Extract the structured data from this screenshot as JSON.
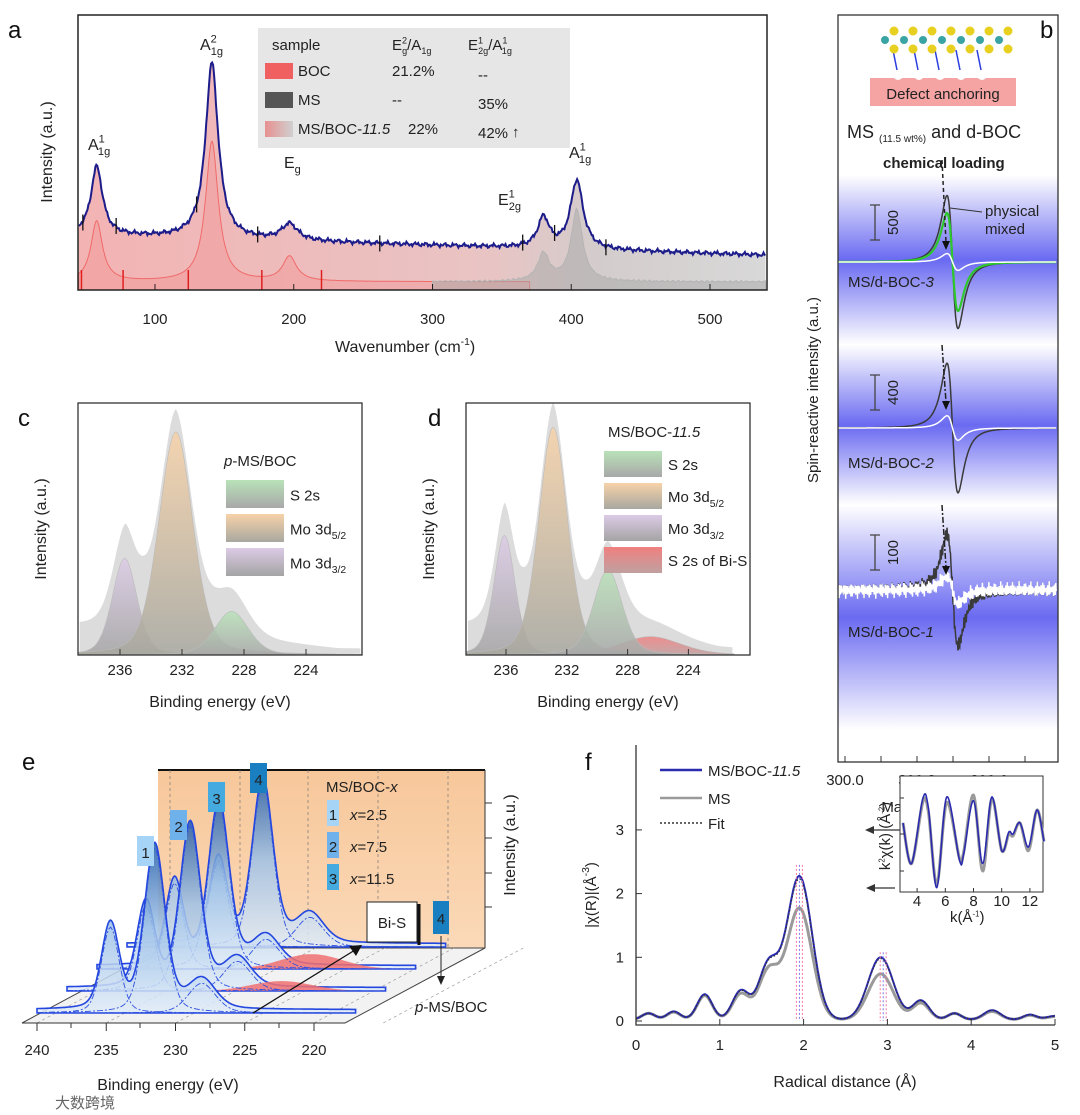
{
  "panel_letters": {
    "a": "a",
    "b": "b",
    "c": "c",
    "d": "d",
    "e": "e",
    "f": "f"
  },
  "watermark": "大数跨境",
  "chart_data": {
    "a": {
      "type": "line",
      "title": "",
      "xlabel": {
        "base": "Wavenumber (cm",
        "sup": "-1",
        "end": ")"
      },
      "ylabel": "Intensity (a.u.)",
      "xlim": [
        45,
        540
      ],
      "ylim": [
        0,
        100
      ],
      "xticks": [
        100,
        200,
        300,
        400,
        500
      ],
      "peak_labels": [
        {
          "base": "A",
          "sup": "1",
          "sub": "1g",
          "x": 58
        },
        {
          "base": "A",
          "sup": "2",
          "sub": "1g",
          "x": 141
        },
        {
          "base": "E",
          "sup": "",
          "sub": "g",
          "x": 197
        },
        {
          "base": "E",
          "sup": "1",
          "sub": "2g",
          "x": 380
        },
        {
          "base": "A",
          "sup": "1",
          "sub": "1g",
          "x": 404
        }
      ],
      "series": [
        {
          "name": "MS/BOC-11.5",
          "color": "#1c1c8a",
          "baseline": [
            20,
            12.7
          ],
          "peaks": [
            [
              58,
              25,
              5
            ],
            [
              141,
              64,
              5.5
            ],
            [
              197,
              6,
              7
            ],
            [
              380,
              11,
              5
            ],
            [
              404,
              25,
              5.5
            ]
          ]
        },
        {
          "name": "BOC",
          "color": "#f06a6a",
          "baseline": [
            3,
            3
          ],
          "peaks": [
            [
              58,
              22,
              5
            ],
            [
              141,
              51,
              5.5
            ],
            [
              197,
              9,
              6
            ]
          ]
        },
        {
          "name": "MS",
          "color": "#9a9a9a",
          "baseline": [
            3,
            3
          ],
          "peaks": [
            [
              380,
              10,
              5
            ],
            [
              404,
              26,
              5
            ]
          ]
        }
      ],
      "red_markers": [
        47,
        77,
        124,
        177,
        220
      ],
      "table": {
        "headers": [
          {
            "base": "sample"
          },
          {
            "base": "E",
            "sub": "g",
            "mid": "/A",
            "sup": "2",
            "sub2": "1g"
          },
          {
            "base": "E",
            "sup": "1",
            "sub": "2g",
            "mid": "/A",
            "sup2": "1",
            "sub2": "1g"
          }
        ],
        "rows": [
          {
            "sample": "BOC",
            "ratio1": "21.2%",
            "ratio2": "--",
            "swatch": "#f06060"
          },
          {
            "sample": "MS",
            "ratio1": "--",
            "ratio2": "35%",
            "swatch": "#555555"
          },
          {
            "sample": "MS/BOC-",
            "sample_italic": "11.5",
            "ratio1": "22%",
            "ratio2": "42%",
            "swatch": "#e8a8a8",
            "trend": "↑"
          }
        ]
      }
    },
    "b": {
      "type": "line",
      "xlabel": "Magnetic Feild (mT)",
      "ylabel": "Spin-reactive intensity (a.u.)",
      "xlim": [
        299.97,
        300.88
      ],
      "xticks": [
        "300.0",
        "300.3",
        "300.6"
      ],
      "header_box": "Defect anchoring",
      "subtitle": {
        "pre": "MS ",
        "sub": "(11.5 wt%)",
        "post": " and d-BOC"
      },
      "annotation_chemical": "chemical loading",
      "annotation_physical": [
        "physical",
        "mixed"
      ],
      "center_field": 300.448,
      "linewidth": 0.0397,
      "traces": [
        {
          "label": "MS/d-BOC-",
          "label_italic": "3",
          "scale_bar": "500",
          "scale_value": 500,
          "chemical": 950,
          "physical": 700,
          "reference": 120,
          "noise": 0
        },
        {
          "label": "MS/d-BOC-",
          "label_italic": "2",
          "scale_bar": "400",
          "scale_value": 400,
          "chemical": 740,
          "physical": null,
          "reference": 140,
          "noise": 0
        },
        {
          "label": "MS/d-BOC-",
          "label_italic": "1",
          "scale_bar": "100",
          "scale_value": 100,
          "chemical": 160,
          "physical": null,
          "reference": 40,
          "noise": 1
        }
      ],
      "colors": {
        "chemical": "#3a3a3a",
        "physical": "#2ec82e",
        "reference": "#ffffff",
        "band": "#5a5af0"
      }
    },
    "c": {
      "type": "area",
      "legend_title": {
        "italic": "p",
        "rest": "-MS/BOC"
      },
      "xlabel": "Binding energy (eV)",
      "ylabel": "Intensity (a.u.)",
      "xlim": [
        238.7,
        220.4
      ],
      "xticks": [
        236,
        232,
        228,
        224
      ],
      "components": [
        {
          "name": {
            "base": "S 2s"
          },
          "center": 228.8,
          "height": 19,
          "sigma": 1.1,
          "top": "#b9e2b9",
          "bottom": "#a8a8a8"
        },
        {
          "name": {
            "base": "Mo 3d",
            "sub": "5/2"
          },
          "center": 232.4,
          "height": 97,
          "sigma": 1.1,
          "top": "#f7d2a8",
          "bottom": "#a8a8a0"
        },
        {
          "name": {
            "base": "Mo 3d",
            "sub": "3/2"
          },
          "center": 235.7,
          "height": 42,
          "sigma": 0.8,
          "top": "#dccbe6",
          "bottom": "#a4a4a4"
        }
      ]
    },
    "d": {
      "type": "area",
      "legend_title": {
        "rest": "MS/BOC-",
        "italic": "11.5"
      },
      "xlabel": "Binding energy (eV)",
      "ylabel": "Intensity (a.u.)",
      "xlim": [
        238.6,
        221.0
      ],
      "xticks": [
        236,
        232,
        228,
        224
      ],
      "components": [
        {
          "name": {
            "base": "S 2s"
          },
          "center": 229.3,
          "height": 37,
          "sigma": 0.95,
          "top": "#b9e2b9",
          "bottom": "#a8a8a8"
        },
        {
          "name": {
            "base": "Mo 3d",
            "sub": "5/2"
          },
          "center": 232.9,
          "height": 99,
          "sigma": 0.95,
          "top": "#f7d2a8",
          "bottom": "#a8a8a0"
        },
        {
          "name": {
            "base": "Mo 3d",
            "sub": "3/2"
          },
          "center": 236.1,
          "height": 52,
          "sigma": 0.7,
          "top": "#dccbe6",
          "bottom": "#a4a4a4"
        },
        {
          "name": {
            "base": "S 2s of Bi-S"
          },
          "center": 226.5,
          "height": 8,
          "sigma": 2.0,
          "top": "#f08080",
          "bottom": "#c0a0a0"
        }
      ]
    },
    "e": {
      "type": "area",
      "xlabel": "Binding energy (eV)",
      "ylabel": "Intensity (a.u.)",
      "xticks": [
        240,
        235,
        230,
        225,
        220
      ],
      "legend_title": {
        "rest": "MS/BOC-",
        "italic": "x"
      },
      "bis_label": "Bi-S",
      "reference_label": {
        "italic": "p",
        "rest": "-MS/BOC"
      },
      "series": [
        {
          "badge": "1",
          "x_label": "x",
          "x_value": "=2.5",
          "main": 231.5,
          "bis": 0,
          "color": "#a6d4f6"
        },
        {
          "badge": "2",
          "x_label": "x",
          "x_value": "=7.5",
          "main": 231.1,
          "bis": 6,
          "color": "#6fb1ea"
        },
        {
          "badge": "3",
          "x_label": "x",
          "x_value": "=11.5",
          "main": 231.2,
          "bis": 9,
          "color": "#44aadf"
        },
        {
          "badge": "4",
          "main": 230.2,
          "bis": 0,
          "color": "#1a7fc1"
        }
      ]
    },
    "f": {
      "type": "line",
      "xlabel": "Radical distance (Å)",
      "ylabel": {
        "base": "|χ(R)|(Å",
        "sup": "-3",
        "end": ")"
      },
      "xlim": [
        0,
        5
      ],
      "ylim": [
        0,
        3.4
      ],
      "xticks": [
        0,
        1,
        2,
        3,
        4,
        5
      ],
      "yticks": [
        0,
        1,
        2,
        3
      ],
      "legend": [
        {
          "name": "MS/BOC-",
          "italic": "11.5",
          "color": "#2b2bb0",
          "style": "solid"
        },
        {
          "name": "MS",
          "color": "#9a9a9a",
          "style": "solid"
        },
        {
          "name": "Fit",
          "color": "#333333",
          "style": "dotted"
        }
      ],
      "series": {
        "MS/BOC-11.5": [
          [
            0.15,
            0.1,
            0.08
          ],
          [
            0.45,
            0.13,
            0.08
          ],
          [
            0.82,
            0.4,
            0.09
          ],
          [
            1.25,
            0.45,
            0.1
          ],
          [
            1.58,
            0.85,
            0.12
          ],
          [
            1.95,
            2.25,
            0.15
          ],
          [
            2.92,
            0.98,
            0.15
          ],
          [
            3.4,
            0.3,
            0.1
          ],
          [
            3.8,
            0.1,
            0.08
          ],
          [
            4.25,
            0.15,
            0.1
          ],
          [
            4.7,
            0.08,
            0.08
          ],
          [
            5.0,
            0.06,
            0.1
          ]
        ],
        "MS": [
          [
            0.15,
            0.1,
            0.08
          ],
          [
            0.45,
            0.12,
            0.08
          ],
          [
            0.82,
            0.38,
            0.09
          ],
          [
            1.25,
            0.4,
            0.1
          ],
          [
            1.58,
            0.75,
            0.12
          ],
          [
            1.95,
            1.75,
            0.15
          ],
          [
            2.92,
            0.72,
            0.15
          ],
          [
            3.4,
            0.26,
            0.1
          ],
          [
            3.8,
            0.1,
            0.08
          ],
          [
            4.25,
            0.13,
            0.1
          ],
          [
            4.7,
            0.07,
            0.08
          ],
          [
            5.0,
            0.05,
            0.1
          ]
        ]
      },
      "peak_markers": [
        1.95,
        2.95
      ],
      "inset": {
        "xlabel": {
          "base": "k(Å",
          "sup": "-1",
          "end": ")"
        },
        "ylabel": {
          "base": "k",
          "sup": "2",
          "mid": "χ(k) (Å",
          "sup2": "-2",
          "end": ")"
        },
        "xlim": [
          3,
          13
        ],
        "xticks": [
          4,
          6,
          8,
          10,
          12
        ],
        "blue": [
          [
            3,
            0.3
          ],
          [
            3.6,
            -0.8
          ],
          [
            4.4,
            0.95
          ],
          [
            4.8,
            0.7
          ],
          [
            5.4,
            -1.45
          ],
          [
            6.1,
            1.0
          ],
          [
            7.0,
            -0.7
          ],
          [
            7.3,
            -0.55
          ],
          [
            8.0,
            0.9
          ],
          [
            8.65,
            -0.8
          ],
          [
            9.3,
            1.0
          ],
          [
            10.0,
            -0.45
          ],
          [
            10.5,
            0.05
          ],
          [
            10.8,
            0.0
          ],
          [
            11.3,
            0.3
          ],
          [
            11.9,
            -0.35
          ],
          [
            12.5,
            0.65
          ],
          [
            13,
            -0.2
          ]
        ],
        "gray": [
          [
            3,
            0.3
          ],
          [
            3.6,
            -0.8
          ],
          [
            4.4,
            0.85
          ],
          [
            4.8,
            0.6
          ],
          [
            5.4,
            -1.35
          ],
          [
            6.1,
            0.85
          ],
          [
            7.0,
            -0.65
          ],
          [
            7.3,
            -0.5
          ],
          [
            8.0,
            1.05
          ],
          [
            8.65,
            -1.0
          ],
          [
            9.3,
            0.95
          ],
          [
            10.0,
            -0.45
          ],
          [
            10.5,
            0.0
          ],
          [
            10.8,
            -0.05
          ],
          [
            11.3,
            0.3
          ],
          [
            11.9,
            -0.45
          ],
          [
            12.5,
            0.65
          ],
          [
            13,
            -0.2
          ]
        ]
      }
    }
  }
}
